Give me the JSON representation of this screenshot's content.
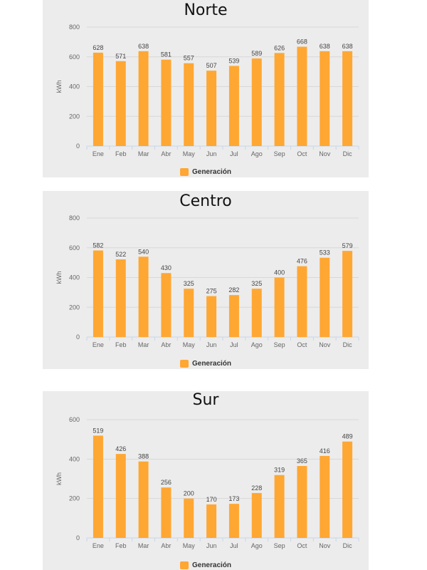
{
  "colors": {
    "bar": "#FFA733",
    "grid": "#d8d8d8",
    "axis": "#c8d6e8",
    "text": "#666666"
  },
  "chart_data": [
    {
      "type": "bar",
      "title": "Norte",
      "ylabel": "kWh",
      "ylim": [
        0,
        800
      ],
      "yticks": [
        0,
        200,
        400,
        600,
        800
      ],
      "categories": [
        "Ene",
        "Feb",
        "Mar",
        "Abr",
        "May",
        "Jun",
        "Jul",
        "Ago",
        "Sep",
        "Oct",
        "Nov",
        "Dic"
      ],
      "series": [
        {
          "name": "Generación",
          "values": [
            628,
            571,
            638,
            581,
            557,
            507,
            539,
            589,
            626,
            668,
            638,
            638
          ]
        }
      ],
      "legend": "bottom-center",
      "grid": true
    },
    {
      "type": "bar",
      "title": "Centro",
      "ylabel": "kWh",
      "ylim": [
        0,
        800
      ],
      "yticks": [
        0,
        200,
        400,
        600,
        800
      ],
      "categories": [
        "Ene",
        "Feb",
        "Mar",
        "Abr",
        "May",
        "Jun",
        "Jul",
        "Ago",
        "Sep",
        "Oct",
        "Nov",
        "Dic"
      ],
      "series": [
        {
          "name": "Generación",
          "values": [
            582,
            522,
            540,
            430,
            325,
            275,
            282,
            325,
            400,
            476,
            533,
            579
          ]
        }
      ],
      "legend": "bottom-center",
      "grid": true
    },
    {
      "type": "bar",
      "title": "Sur",
      "ylabel": "kWh",
      "ylim": [
        0,
        600
      ],
      "yticks": [
        0,
        200,
        400,
        600
      ],
      "categories": [
        "Ene",
        "Feb",
        "Mar",
        "Abr",
        "May",
        "Jun",
        "Jul",
        "Ago",
        "Sep",
        "Oct",
        "Nov",
        "Dic"
      ],
      "series": [
        {
          "name": "Generación",
          "values": [
            519,
            426,
            388,
            256,
            200,
            170,
            173,
            228,
            319,
            365,
            416,
            489
          ]
        }
      ],
      "legend": "bottom-center",
      "grid": true
    }
  ]
}
